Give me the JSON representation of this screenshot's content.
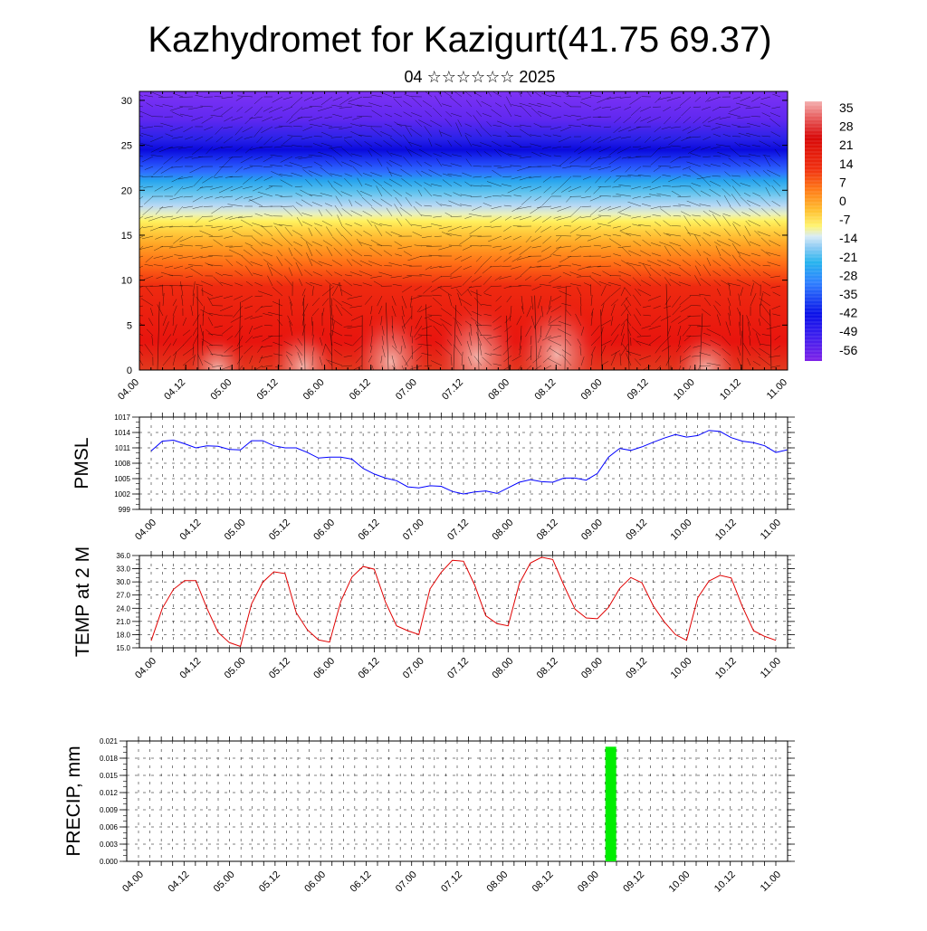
{
  "page": {
    "title": "Kazhydromet for Kazigurt(41.75 69.37)",
    "subtitle": "04 ☆☆☆☆☆☆ 2025"
  },
  "chart_data": [
    {
      "type": "heatmap",
      "name": "upper-air-section",
      "x_tick_labels": [
        "04.00",
        "04.12",
        "05.00",
        "05.12",
        "06.00",
        "06.12",
        "07.00",
        "07.12",
        "08.00",
        "08.12",
        "09.00",
        "09.12",
        "10.00",
        "10.12",
        "11.00"
      ],
      "y_ticks": [
        0,
        5,
        10,
        15,
        20,
        25,
        30
      ],
      "ylim": [
        0,
        31
      ],
      "colorbar_labels": [
        "35",
        "28",
        "21",
        "14",
        "7",
        "0",
        "-7",
        "-14",
        "-21",
        "-28",
        "-35",
        "-42",
        "-49",
        "-56"
      ],
      "colorbar_range": [
        -60,
        39
      ],
      "colors": {
        "warm_low": "#e23a1e",
        "red": "#e8140e",
        "orange": "#ff8c1a",
        "yellow": "#ffe44a",
        "light_blue": "#b8d8f4",
        "cyan": "#27b4ee",
        "blue": "#1f46ff",
        "deep_blue": "#0a0adc",
        "violet": "#7f33f5"
      },
      "overlay": "wind-arrows"
    },
    {
      "type": "line",
      "name": "pmsl",
      "ylabel": "PMSL",
      "ylim": [
        999,
        1017
      ],
      "y_ticks": [
        "999",
        "1002",
        "1005",
        "1008",
        "1011",
        "1014",
        "1017"
      ],
      "x_tick_labels": [
        "04.00",
        "04.12",
        "05.00",
        "05.12",
        "06.00",
        "06.12",
        "07.00",
        "07.12",
        "08.00",
        "08.12",
        "09.00",
        "09.12",
        "10.00",
        "10.12",
        "11.00"
      ],
      "color": "#0000ff",
      "values": [
        1010.4,
        1012.3,
        1012.5,
        1011.8,
        1011.0,
        1011.4,
        1011.3,
        1010.7,
        1010.6,
        1012.4,
        1012.4,
        1011.4,
        1011.0,
        1011.0,
        1010.1,
        1009.0,
        1009.2,
        1009.2,
        1008.8,
        1007.0,
        1005.9,
        1005.1,
        1004.6,
        1003.4,
        1003.2,
        1003.6,
        1003.5,
        1002.5,
        1002.0,
        1002.4,
        1002.6,
        1002.1,
        1003.2,
        1004.3,
        1004.8,
        1004.4,
        1004.3,
        1005.1,
        1005.1,
        1004.7,
        1006.0,
        1009.2,
        1010.9,
        1010.5,
        1011.2,
        1012.1,
        1012.9,
        1013.6,
        1013.1,
        1013.4,
        1014.4,
        1014.2,
        1013.0,
        1012.3,
        1012.0,
        1011.4,
        1010.1,
        1010.6
      ]
    },
    {
      "type": "line",
      "name": "temp-2m",
      "ylabel": "TEMP at 2 M",
      "ylim": [
        15,
        36
      ],
      "y_ticks": [
        "15.0",
        "18.0",
        "21.0",
        "24.0",
        "27.0",
        "30.0",
        "33.0",
        "36.0"
      ],
      "x_tick_labels": [
        "04.00",
        "04.12",
        "05.00",
        "05.12",
        "06.00",
        "06.12",
        "07.00",
        "07.12",
        "08.00",
        "08.12",
        "09.00",
        "09.12",
        "10.00",
        "10.12",
        "11.00"
      ],
      "color": "#e00000",
      "values": [
        16.6,
        24.0,
        28.3,
        30.3,
        30.3,
        24.0,
        18.5,
        16.2,
        15.3,
        25.0,
        29.9,
        32.3,
        31.9,
        23.0,
        19.1,
        16.8,
        16.3,
        25.6,
        31.1,
        33.5,
        32.9,
        25.4,
        20.0,
        18.9,
        18.0,
        28.4,
        32.2,
        34.9,
        34.7,
        29.3,
        22.3,
        20.5,
        20.0,
        29.6,
        34.3,
        35.6,
        35.1,
        29.2,
        23.8,
        21.8,
        21.6,
        24.2,
        28.5,
        31.0,
        29.8,
        24.6,
        20.9,
        18.0,
        16.7,
        26.4,
        30.2,
        31.5,
        30.9,
        24.4,
        18.9,
        17.6,
        16.7
      ]
    },
    {
      "type": "bar",
      "name": "precip",
      "ylabel": "PRECIP, mm",
      "ylim": [
        0,
        0.021
      ],
      "y_ticks": [
        "0.000",
        "0.003",
        "0.006",
        "0.009",
        "0.012",
        "0.015",
        "0.018",
        "0.021"
      ],
      "x_tick_labels": [
        "04.00",
        "04.12",
        "05.00",
        "05.12",
        "06.00",
        "06.12",
        "07.00",
        "07.12",
        "08.00",
        "08.12",
        "09.00",
        "09.12",
        "10.00",
        "10.12",
        "11.00"
      ],
      "color": "#00ee00",
      "bars": [
        {
          "step": 41.5,
          "value": 0.02
        }
      ]
    }
  ]
}
